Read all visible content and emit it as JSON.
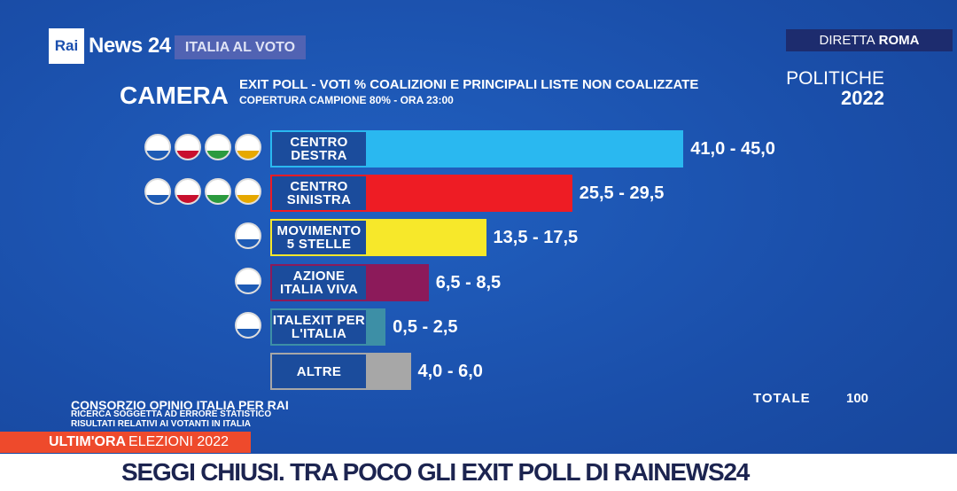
{
  "header": {
    "logo_rai": "Rai",
    "logo_news": "News 24",
    "program": "ITALIA AL VOTO",
    "live_prefix": "DIRETTA",
    "live_city": "ROMA"
  },
  "title": {
    "house": "CAMERA",
    "line1": "EXIT POLL - VOTI % COALIZIONI E PRINCIPALI LISTE NON COALIZZATE",
    "line2": "COPERTURA CAMPIONE 80% - ORA 23:00",
    "election": "POLITICHE",
    "year": "2022"
  },
  "chart_data": {
    "type": "bar",
    "orientation": "horizontal",
    "title": "EXIT POLL - VOTI % COALIZIONI E PRINCIPALI LISTE NON COALIZZATE",
    "unit": "%",
    "categories": [
      "CENTRO DESTRA",
      "CENTRO SINISTRA",
      "MOVIMENTO 5 STELLE",
      "AZIONE ITALIA VIVA",
      "ITALEXIT PER L'ITALIA",
      "ALTRE"
    ],
    "ranges": [
      [
        41.0,
        45.0
      ],
      [
        25.5,
        29.5
      ],
      [
        13.5,
        17.5
      ],
      [
        6.5,
        8.5
      ],
      [
        0.5,
        2.5
      ],
      [
        4.0,
        6.0
      ]
    ],
    "range_labels": [
      "41,0 - 45,0",
      "25,5 - 29,5",
      "13,5 - 17,5",
      "6,5 - 8,5",
      "0,5 - 2,5",
      "4,0 - 6,0"
    ],
    "colors": [
      "#2ab8f0",
      "#ee1c24",
      "#f7e82a",
      "#8c1a5a",
      "#3d8fa6",
      "#a7a7a7"
    ],
    "logo_counts": [
      4,
      4,
      1,
      1,
      1,
      0
    ],
    "total_label": "TOTALE",
    "total_value": "100"
  },
  "footer": {
    "source": "CONSORZIO OPINIO ITALIA PER RAI",
    "note1": "RICERCA SOGGETTA AD ERRORE STATISTICO",
    "note2": "RISULTATI RELATIVI AI VOTANTI IN ITALIA"
  },
  "ticker": {
    "tag": "ULTIM'ORA",
    "topic": "ELEZIONI 2022",
    "headline": "SEGGI CHIUSI. TRA POCO GLI EXIT POLL DI RAINEWS24"
  }
}
